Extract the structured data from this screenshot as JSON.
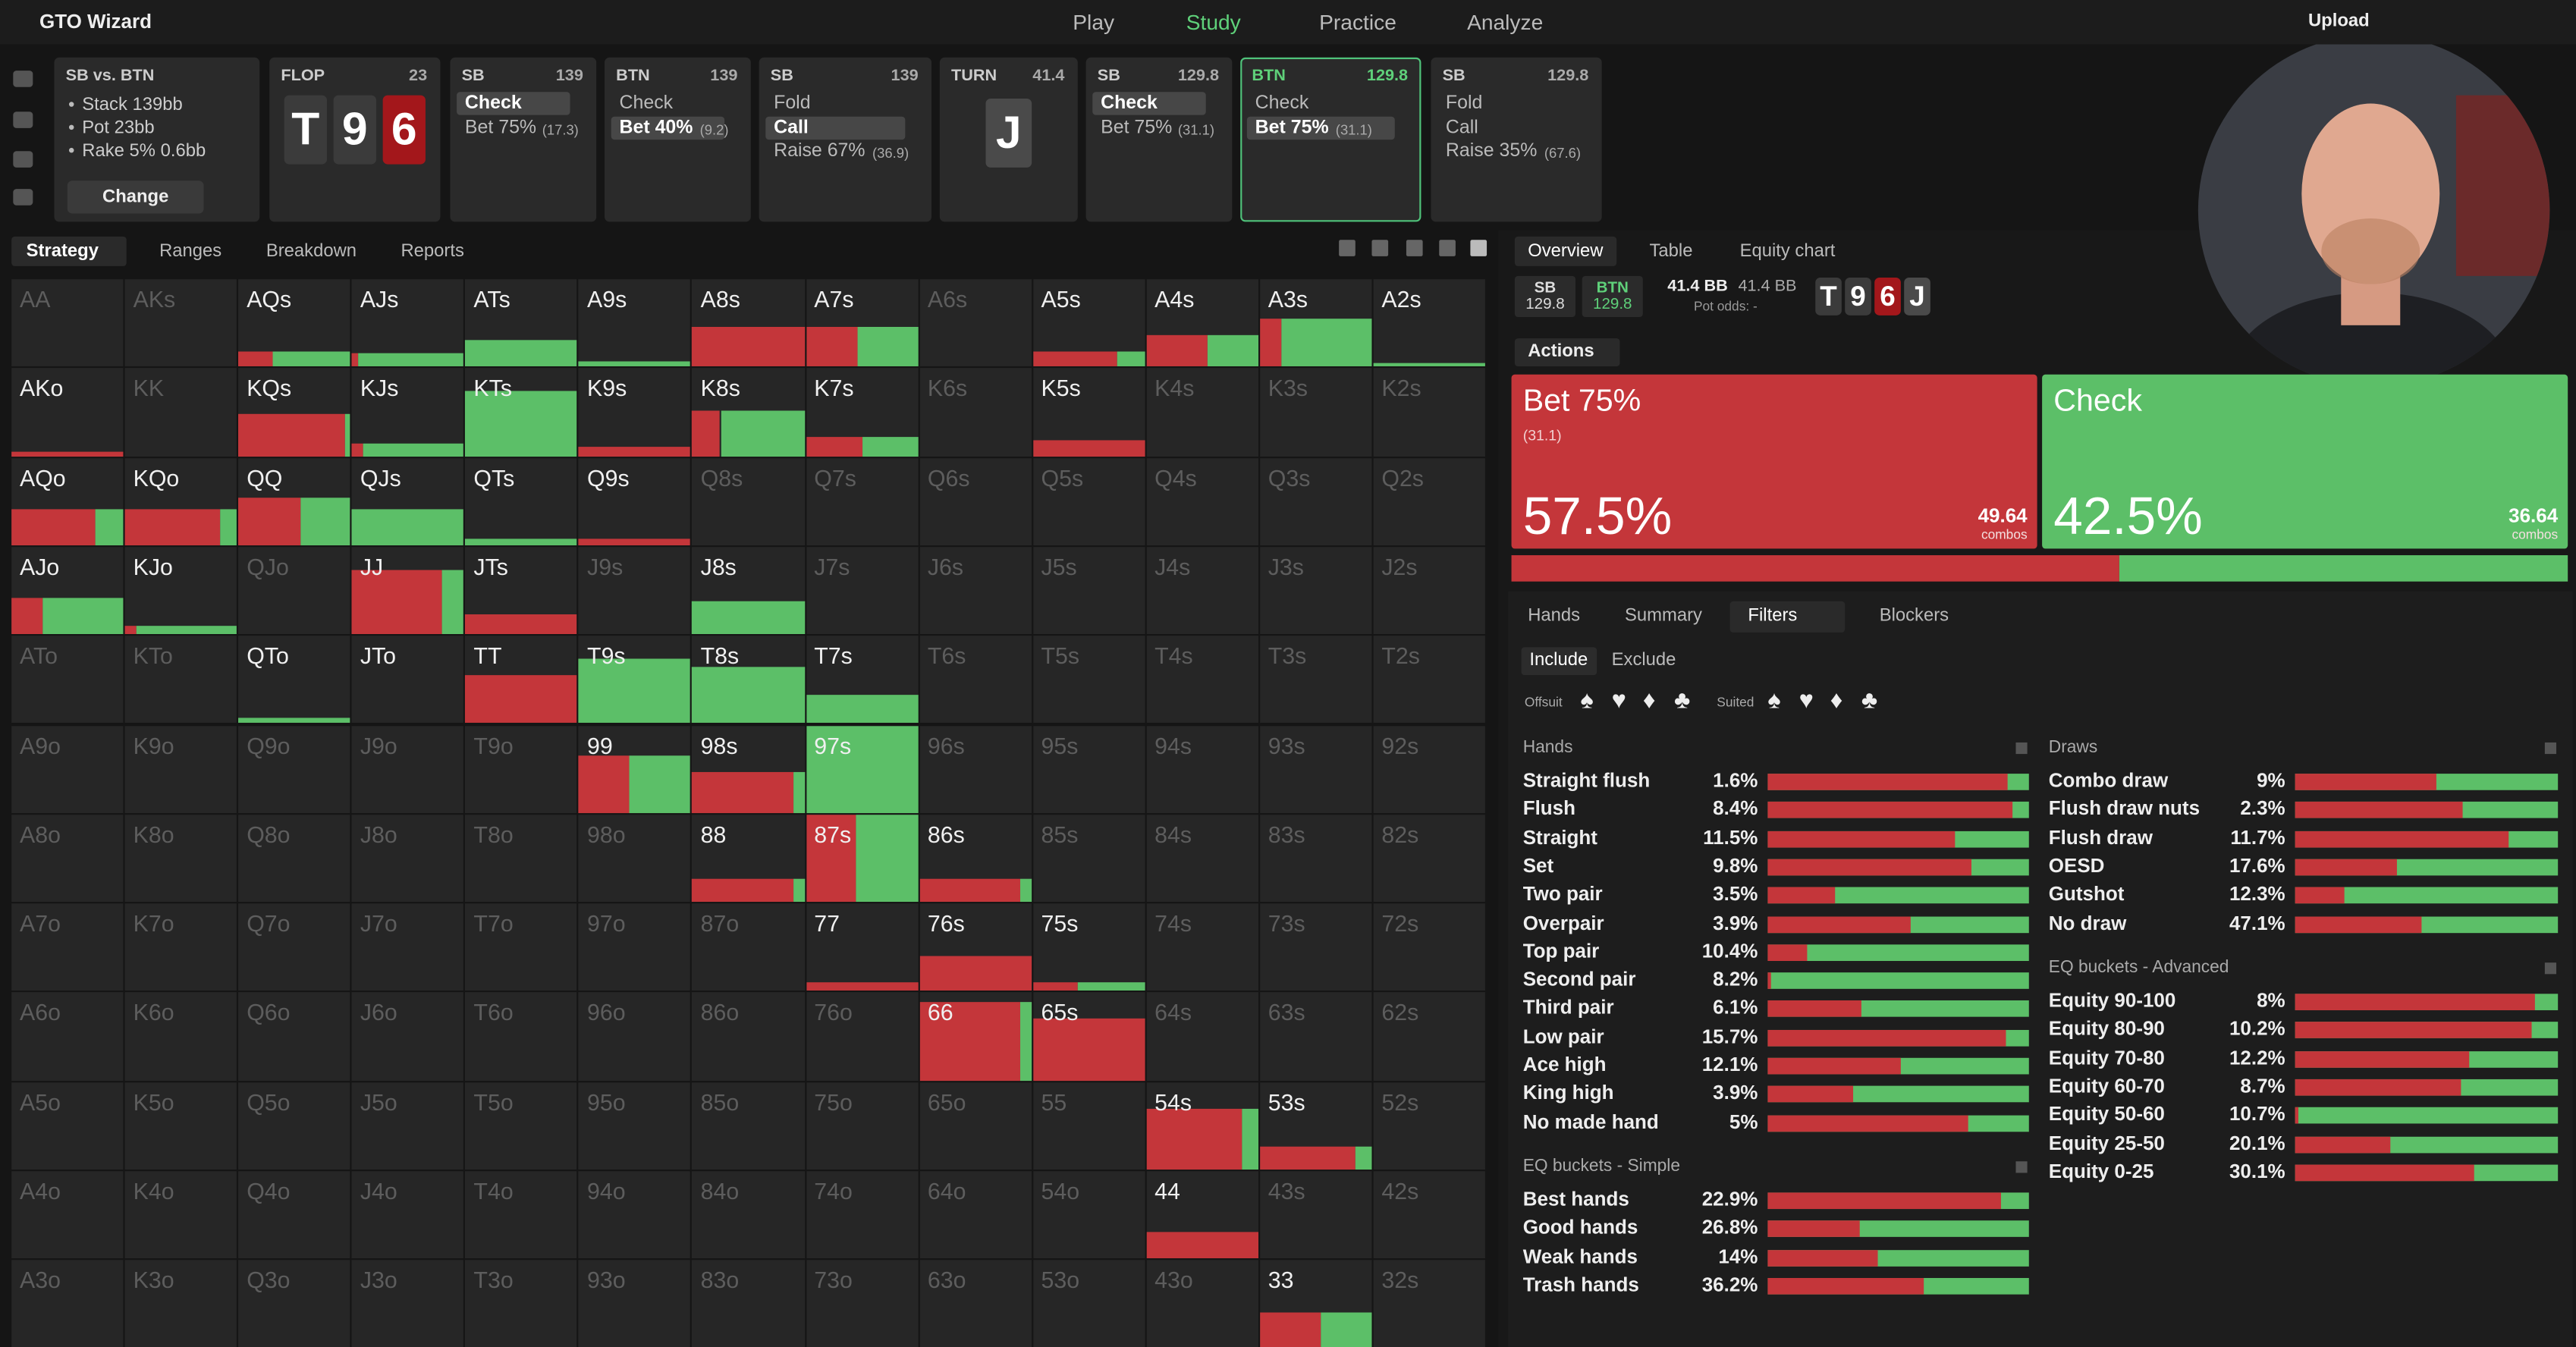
{
  "topbar": {
    "logo": "GTO Wizard",
    "nav": [
      "Play",
      "Study",
      "Practice",
      "Analyze"
    ],
    "active": 1,
    "upload": "Upload"
  },
  "setup": {
    "title": "SB vs. BTN",
    "lines": [
      "Stack 139bb",
      "Pot 23bb",
      "Rake 5% 0.6bb"
    ],
    "button": "Change"
  },
  "history": [
    {
      "label": "FLOP",
      "amount": 23,
      "cards": [
        {
          "rank": "T",
          "color": "#3b3b3b"
        },
        {
          "rank": "9",
          "color": "#3b3b3b"
        },
        {
          "rank": "6",
          "color": "#a3171b"
        }
      ]
    },
    {
      "label": "SB",
      "amount": 139,
      "selected": 0,
      "options": [
        {
          "text": "Check"
        },
        {
          "text": "Bet 75%",
          "size": "(17.3)"
        }
      ]
    },
    {
      "label": "BTN",
      "amount": 139,
      "selected": 1,
      "options": [
        {
          "text": "Check"
        },
        {
          "text": "Bet 40%",
          "size": "(9.2)"
        }
      ]
    },
    {
      "label": "SB",
      "amount": 139,
      "selected": 1,
      "options": [
        {
          "text": "Fold"
        },
        {
          "text": "Call"
        },
        {
          "text": "Raise 67%",
          "size": "(36.9)"
        }
      ]
    },
    {
      "label": "TURN",
      "amount": 41.4,
      "cards": [
        {
          "rank": "J",
          "color": "#4a4a4a"
        }
      ]
    },
    {
      "label": "SB",
      "amount": 129.8,
      "selected": 0,
      "options": [
        {
          "text": "Check"
        },
        {
          "text": "Bet 75%",
          "size": "(31.1)"
        }
      ]
    },
    {
      "label": "BTN",
      "amount": 129.8,
      "selected": 1,
      "current": true,
      "options": [
        {
          "text": "Check"
        },
        {
          "text": "Bet 75%",
          "size": "(31.1)"
        }
      ]
    },
    {
      "label": "SB",
      "amount": 129.8,
      "options": [
        {
          "text": "Fold"
        },
        {
          "text": "Call"
        },
        {
          "text": "Raise 35%",
          "size": "(67.6)"
        }
      ]
    }
  ],
  "left_tabs": [
    "Strategy",
    "Ranges",
    "Breakdown",
    "Reports"
  ],
  "matrix": {
    "rows": [
      [
        {
          "hand": "AA"
        },
        {
          "hand": "AKs"
        },
        {
          "hand": "AQs",
          "weight": 18,
          "bet": 30,
          "check": 70
        },
        {
          "hand": "AJs",
          "weight": 15,
          "bet": 5,
          "check": 95
        },
        {
          "hand": "ATs",
          "weight": 30,
          "bet": 0,
          "check": 100
        },
        {
          "hand": "A9s",
          "weight": 7,
          "bet": 0,
          "check": 100
        },
        {
          "hand": "A8s",
          "weight": 46,
          "bet": 100,
          "check": 0
        },
        {
          "hand": "A7s",
          "weight": 46,
          "bet": 46,
          "check": 54
        },
        {
          "hand": "A6s"
        },
        {
          "hand": "A5s",
          "weight": 18,
          "bet": 75,
          "check": 25
        },
        {
          "hand": "A4s",
          "weight": 37,
          "bet": 55,
          "check": 45
        },
        {
          "hand": "A3s",
          "weight": 55,
          "bet": 20,
          "check": 80
        },
        {
          "hand": "A2s",
          "weight": 4,
          "bet": 0,
          "check": 100
        }
      ],
      [
        {
          "hand": "AKo",
          "weight": 5,
          "bet": 100,
          "check": 0
        },
        {
          "hand": "KK"
        },
        {
          "hand": "KQs",
          "weight": 48,
          "bet": 95,
          "check": 5
        },
        {
          "hand": "KJs",
          "weight": 15,
          "bet": 10,
          "check": 90
        },
        {
          "hand": "KTs",
          "weight": 74,
          "bet": 0,
          "check": 100
        },
        {
          "hand": "K9s",
          "weight": 11,
          "bet": 100,
          "check": 0
        },
        {
          "hand": "K8s",
          "weight": 52,
          "bet": 25,
          "check": 75
        },
        {
          "hand": "K7s",
          "weight": 22,
          "bet": 50,
          "check": 50
        },
        {
          "hand": "K6s"
        },
        {
          "hand": "K5s",
          "weight": 18,
          "bet": 100,
          "check": 0
        },
        {
          "hand": "K4s"
        },
        {
          "hand": "K3s"
        },
        {
          "hand": "K2s"
        }
      ],
      [
        {
          "hand": "AQo",
          "weight": 41,
          "bet": 75,
          "check": 25
        },
        {
          "hand": "KQo",
          "weight": 41,
          "bet": 85,
          "check": 15
        },
        {
          "hand": "QQ",
          "weight": 55,
          "bet": 55,
          "check": 45
        },
        {
          "hand": "QJs",
          "weight": 41,
          "bet": 0,
          "check": 100
        },
        {
          "hand": "QTs",
          "weight": 7,
          "bet": 0,
          "check": 100
        },
        {
          "hand": "Q9s",
          "weight": 7,
          "bet": 100,
          "check": 0
        },
        {
          "hand": "Q8s"
        },
        {
          "hand": "Q7s"
        },
        {
          "hand": "Q6s"
        },
        {
          "hand": "Q5s"
        },
        {
          "hand": "Q4s"
        },
        {
          "hand": "Q3s"
        },
        {
          "hand": "Q2s"
        }
      ],
      [
        {
          "hand": "AJo",
          "weight": 41,
          "bet": 28,
          "check": 72
        },
        {
          "hand": "KJo",
          "weight": 9,
          "bet": 10,
          "check": 90
        },
        {
          "hand": "QJo"
        },
        {
          "hand": "JJ",
          "weight": 74,
          "bet": 80,
          "check": 20
        },
        {
          "hand": "JTs",
          "weight": 22,
          "bet": 100,
          "check": 0
        },
        {
          "hand": "J9s"
        },
        {
          "hand": "J8s",
          "weight": 37,
          "bet": 0,
          "check": 100
        },
        {
          "hand": "J7s"
        },
        {
          "hand": "J6s"
        },
        {
          "hand": "J5s"
        },
        {
          "hand": "J4s"
        },
        {
          "hand": "J3s"
        },
        {
          "hand": "J2s"
        }
      ],
      [
        {
          "hand": "ATo"
        },
        {
          "hand": "KTo"
        },
        {
          "hand": "QTo",
          "weight": 6,
          "bet": 0,
          "check": 100
        },
        {
          "hand": "JTo",
          "weight": 0,
          "bet": 0,
          "check": 0
        },
        {
          "hand": "TT",
          "weight": 55,
          "bet": 100,
          "check": 0
        },
        {
          "hand": "T9s",
          "weight": 74,
          "bet": 0,
          "check": 100
        },
        {
          "hand": "T8s",
          "weight": 65,
          "bet": 0,
          "check": 100
        },
        {
          "hand": "T7s",
          "weight": 33,
          "bet": 0,
          "check": 100
        },
        {
          "hand": "T6s"
        },
        {
          "hand": "T5s"
        },
        {
          "hand": "T4s"
        },
        {
          "hand": "T3s"
        },
        {
          "hand": "T2s"
        }
      ],
      [
        {
          "hand": "A9o"
        },
        {
          "hand": "K9o"
        },
        {
          "hand": "Q9o"
        },
        {
          "hand": "J9o"
        },
        {
          "hand": "T9o"
        },
        {
          "hand": "99",
          "weight": 65,
          "bet": 45,
          "check": 55
        },
        {
          "hand": "98s",
          "weight": 46,
          "bet": 90,
          "check": 10
        },
        {
          "hand": "97s",
          "weight": 100,
          "bet": 0,
          "check": 100
        },
        {
          "hand": "96s"
        },
        {
          "hand": "95s"
        },
        {
          "hand": "94s"
        },
        {
          "hand": "93s"
        },
        {
          "hand": "92s"
        }
      ],
      [
        {
          "hand": "A8o"
        },
        {
          "hand": "K8o"
        },
        {
          "hand": "Q8o"
        },
        {
          "hand": "J8o"
        },
        {
          "hand": "T8o"
        },
        {
          "hand": "98o"
        },
        {
          "hand": "88",
          "weight": 26,
          "bet": 90,
          "check": 10
        },
        {
          "hand": "87s",
          "weight": 100,
          "bet": 45,
          "check": 55
        },
        {
          "hand": "86s",
          "weight": 26,
          "bet": 90,
          "check": 10
        },
        {
          "hand": "85s"
        },
        {
          "hand": "84s"
        },
        {
          "hand": "83s"
        },
        {
          "hand": "82s"
        }
      ],
      [
        {
          "hand": "A7o"
        },
        {
          "hand": "K7o"
        },
        {
          "hand": "Q7o"
        },
        {
          "hand": "J7o"
        },
        {
          "hand": "T7o"
        },
        {
          "hand": "97o"
        },
        {
          "hand": "87o"
        },
        {
          "hand": "77",
          "weight": 11,
          "bet": 100,
          "check": 0
        },
        {
          "hand": "76s",
          "weight": 41,
          "bet": 100,
          "check": 0
        },
        {
          "hand": "75s",
          "weight": 11,
          "bet": 40,
          "check": 60
        },
        {
          "hand": "74s"
        },
        {
          "hand": "73s"
        },
        {
          "hand": "72s"
        }
      ],
      [
        {
          "hand": "A6o"
        },
        {
          "hand": "K6o"
        },
        {
          "hand": "Q6o"
        },
        {
          "hand": "J6o"
        },
        {
          "hand": "T6o"
        },
        {
          "hand": "96o"
        },
        {
          "hand": "86o"
        },
        {
          "hand": "76o"
        },
        {
          "hand": "66",
          "weight": 89,
          "bet": 90,
          "check": 10
        },
        {
          "hand": "65s",
          "weight": 70,
          "bet": 100,
          "check": 0
        },
        {
          "hand": "64s"
        },
        {
          "hand": "63s"
        },
        {
          "hand": "62s"
        }
      ],
      [
        {
          "hand": "A5o"
        },
        {
          "hand": "K5o"
        },
        {
          "hand": "Q5o"
        },
        {
          "hand": "J5o"
        },
        {
          "hand": "T5o"
        },
        {
          "hand": "95o"
        },
        {
          "hand": "85o"
        },
        {
          "hand": "75o"
        },
        {
          "hand": "65o"
        },
        {
          "hand": "55"
        },
        {
          "hand": "54s",
          "weight": 70,
          "bet": 85,
          "check": 15
        },
        {
          "hand": "53s",
          "weight": 26,
          "bet": 85,
          "check": 15
        },
        {
          "hand": "52s"
        }
      ],
      [
        {
          "hand": "A4o"
        },
        {
          "hand": "K4o"
        },
        {
          "hand": "Q4o"
        },
        {
          "hand": "J4o"
        },
        {
          "hand": "T4o"
        },
        {
          "hand": "94o"
        },
        {
          "hand": "84o"
        },
        {
          "hand": "74o"
        },
        {
          "hand": "64o"
        },
        {
          "hand": "54o"
        },
        {
          "hand": "44",
          "weight": 30,
          "bet": 100,
          "check": 0
        },
        {
          "hand": "43s"
        },
        {
          "hand": "42s"
        }
      ],
      [
        {
          "hand": "A3o"
        },
        {
          "hand": "K3o"
        },
        {
          "hand": "Q3o"
        },
        {
          "hand": "J3o"
        },
        {
          "hand": "T3o"
        },
        {
          "hand": "93o"
        },
        {
          "hand": "83o"
        },
        {
          "hand": "73o"
        },
        {
          "hand": "63o"
        },
        {
          "hand": "53o"
        },
        {
          "hand": "43o"
        },
        {
          "hand": "33",
          "weight": 41,
          "bet": 55,
          "check": 45
        },
        {
          "hand": "32s"
        }
      ]
    ]
  },
  "right_tabs": [
    "Overview",
    "Table",
    "Equity chart"
  ],
  "spot": {
    "players": [
      {
        "name": "SB",
        "stack": 129.8,
        "color": "#dddddd"
      },
      {
        "name": "BTN",
        "stack": 129.8,
        "color": "#5fd17a"
      }
    ],
    "pot": "41.4 BB",
    "pot_alt": "41.4 BB",
    "pot_odds": "Pot odds: -",
    "cards": [
      {
        "rank": "T",
        "color": "#3b3b3b"
      },
      {
        "rank": "9",
        "color": "#3b3b3b"
      },
      {
        "rank": "6",
        "color": "#a3171b"
      },
      {
        "rank": "J",
        "color": "#4a4a4a"
      }
    ]
  },
  "actions_menu": "Actions",
  "actions": [
    {
      "name": "Bet 75%",
      "size": "(31.1)",
      "freq": 57.5,
      "freq_label": "57.5%",
      "combos": 49.64,
      "combos_label": "combos",
      "color": "#c4363a"
    },
    {
      "name": "Check",
      "freq": 42.5,
      "freq_label": "42.5%",
      "combos": 36.64,
      "combos_label": "combos",
      "color": "#5cbf68"
    }
  ],
  "sub_tabs": [
    "Hands",
    "Summary",
    "Filters",
    "Blockers"
  ],
  "include": [
    "Include",
    "Exclude"
  ],
  "offsuit": {
    "label": "Offsuit",
    "suits": [
      "♠",
      "♥",
      "♦",
      "♣"
    ]
  },
  "suited": {
    "label": "Suited",
    "suits": [
      "♠",
      "♥",
      "♦",
      "♣"
    ]
  },
  "filters": {
    "left": [
      {
        "title": "Hands",
        "rows": [
          {
            "name": "Straight flush",
            "pct": "1.6%",
            "bet": 92
          },
          {
            "name": "Flush",
            "pct": "8.4%",
            "bet": 94
          },
          {
            "name": "Straight",
            "pct": "11.5%",
            "bet": 72
          },
          {
            "name": "Set",
            "pct": "9.8%",
            "bet": 78
          },
          {
            "name": "Two pair",
            "pct": "3.5%",
            "bet": 26
          },
          {
            "name": "Overpair",
            "pct": "3.9%",
            "bet": 55
          },
          {
            "name": "Top pair",
            "pct": "10.4%",
            "bet": 15
          },
          {
            "name": "Second pair",
            "pct": "8.2%",
            "bet": 1
          },
          {
            "name": "Third pair",
            "pct": "6.1%",
            "bet": 36
          },
          {
            "name": "Low pair",
            "pct": "15.7%",
            "bet": 91
          },
          {
            "name": "Ace high",
            "pct": "12.1%",
            "bet": 51
          },
          {
            "name": "King high",
            "pct": "3.9%",
            "bet": 33
          },
          {
            "name": "No made hand",
            "pct": "5%",
            "bet": 77
          }
        ]
      },
      {
        "title": "EQ buckets - Simple",
        "rows": [
          {
            "name": "Best hands",
            "pct": "22.9%",
            "bet": 89
          },
          {
            "name": "Good hands",
            "pct": "26.8%",
            "bet": 35
          },
          {
            "name": "Weak hands",
            "pct": "14%",
            "bet": 42
          },
          {
            "name": "Trash hands",
            "pct": "36.2%",
            "bet": 60
          }
        ]
      }
    ],
    "right": [
      {
        "title": "Draws",
        "rows": [
          {
            "name": "Combo draw",
            "pct": "9%",
            "bet": 54
          },
          {
            "name": "Flush draw nuts",
            "pct": "2.3%",
            "bet": 64
          },
          {
            "name": "Flush draw",
            "pct": "11.7%",
            "bet": 81
          },
          {
            "name": "OESD",
            "pct": "17.6%",
            "bet": 39
          },
          {
            "name": "Gutshot",
            "pct": "12.3%",
            "bet": 19
          },
          {
            "name": "No draw",
            "pct": "47.1%",
            "bet": 48
          }
        ]
      },
      {
        "title": "EQ buckets - Advanced",
        "rows": [
          {
            "name": "Equity 90-100",
            "pct": "8%",
            "bet": 91
          },
          {
            "name": "Equity 80-90",
            "pct": "10.2%",
            "bet": 90
          },
          {
            "name": "Equity 70-80",
            "pct": "12.2%",
            "bet": 66
          },
          {
            "name": "Equity 60-70",
            "pct": "8.7%",
            "bet": 63
          },
          {
            "name": "Equity 50-60",
            "pct": "10.7%",
            "bet": 1
          },
          {
            "name": "Equity 25-50",
            "pct": "20.1%",
            "bet": 36
          },
          {
            "name": "Equity 0-25",
            "pct": "30.1%",
            "bet": 68
          }
        ]
      }
    ]
  }
}
